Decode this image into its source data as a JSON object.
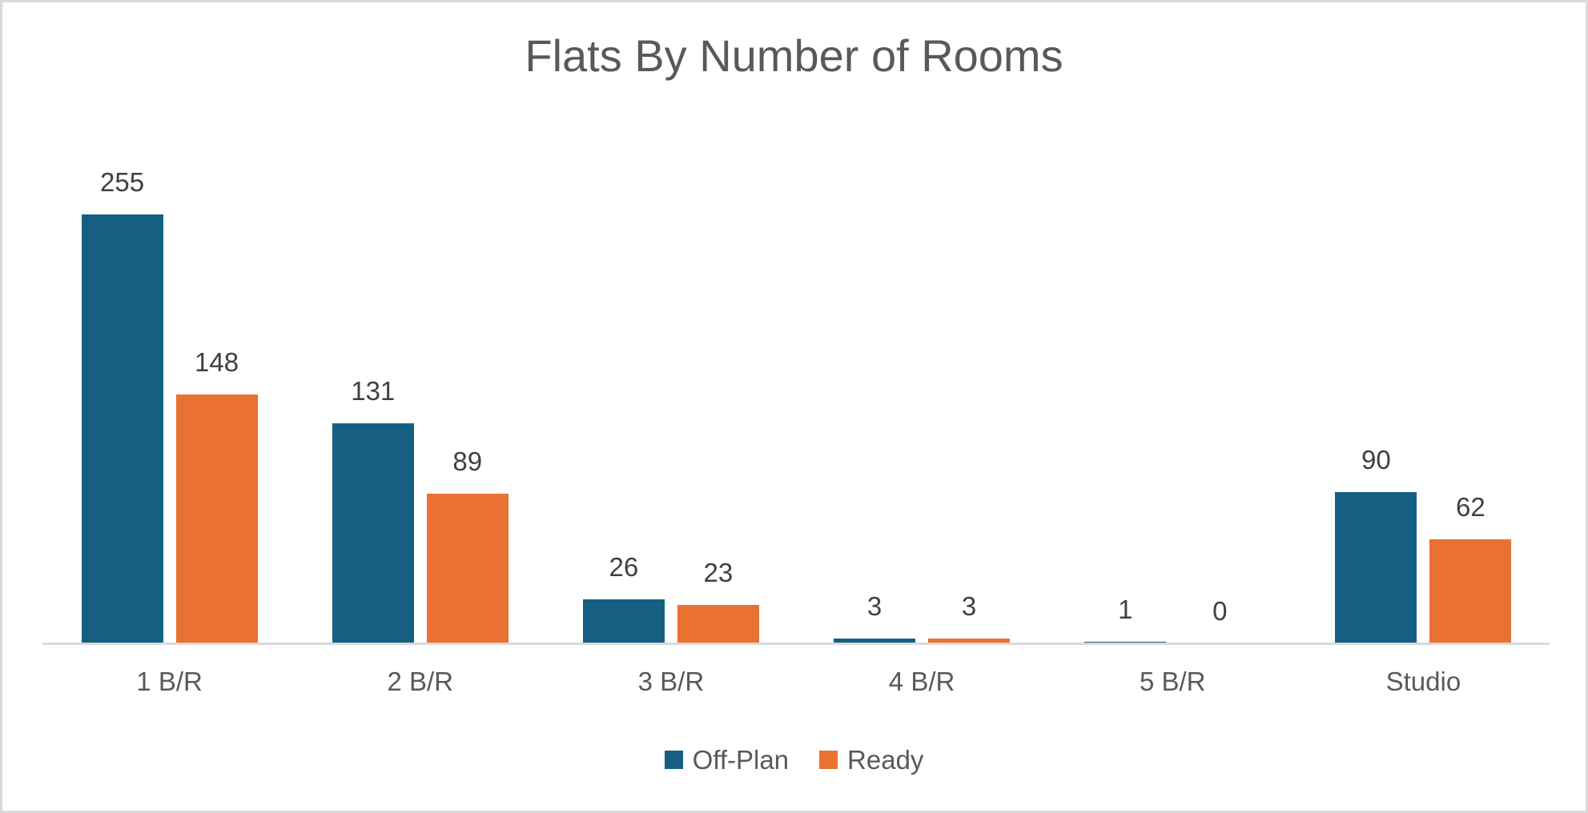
{
  "chart_data": {
    "type": "bar",
    "title": "Flats By Number of Rooms",
    "categories": [
      "1 B/R",
      "2 B/R",
      "3 B/R",
      "4 B/R",
      "5 B/R",
      "Studio"
    ],
    "series": [
      {
        "name": "Off-Plan",
        "color": "#156082",
        "values": [
          255,
          131,
          26,
          3,
          1,
          90
        ]
      },
      {
        "name": "Ready",
        "color": "#E97132",
        "values": [
          148,
          89,
          23,
          3,
          0,
          62
        ]
      }
    ],
    "xlabel": "",
    "ylabel": "",
    "ylim": [
      0,
      270
    ],
    "grid": false,
    "legend_position": "bottom",
    "data_labels": true,
    "colors": {
      "title_text": "#595959",
      "data_label_text": "#404040",
      "axis_text": "#595959",
      "axis_line": "#D9D9D9",
      "page_border": "#D9D9D9",
      "background": "#FFFFFF"
    }
  }
}
